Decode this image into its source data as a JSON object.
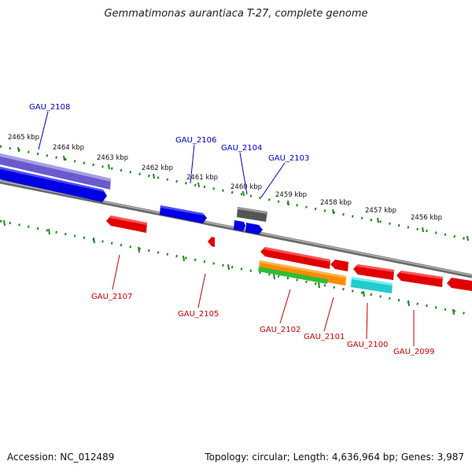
{
  "title": "Gemmatimonas aurantiaca T-27, complete genome",
  "footer": {
    "accession": "Accession: NC_012489",
    "topology": "Topology: circular; Length: 4,636,964 bp; Genes: 3,987"
  },
  "colors": {
    "forward_gene": "#0000ee",
    "reverse_gene": "#ee0000",
    "backbone": "#808080",
    "ticks": "#1a8a1a",
    "label_forward": "#0000cc",
    "label_reverse": "#cc0000",
    "rna": "#606060",
    "orange": "#ff8c00",
    "green": "#33bb33",
    "cyan": "#22cccc",
    "purple": "#6a5acd"
  },
  "scale_labels": [
    "2465 kbp",
    "2464 kbp",
    "2463 kbp",
    "2462 kbp",
    "2461 kbp",
    "2460 kbp",
    "2459 kbp",
    "2458 kbp",
    "2457 kbp",
    "2456 kbp"
  ],
  "gene_labels_forward": [
    "GAU_2108",
    "GAU_2106",
    "GAU_2104",
    "GAU_2103"
  ],
  "gene_labels_reverse": [
    "GAU_2107",
    "GAU_2105",
    "GAU_2102",
    "GAU_2101",
    "GAU_2100",
    "GAU_2099"
  ]
}
